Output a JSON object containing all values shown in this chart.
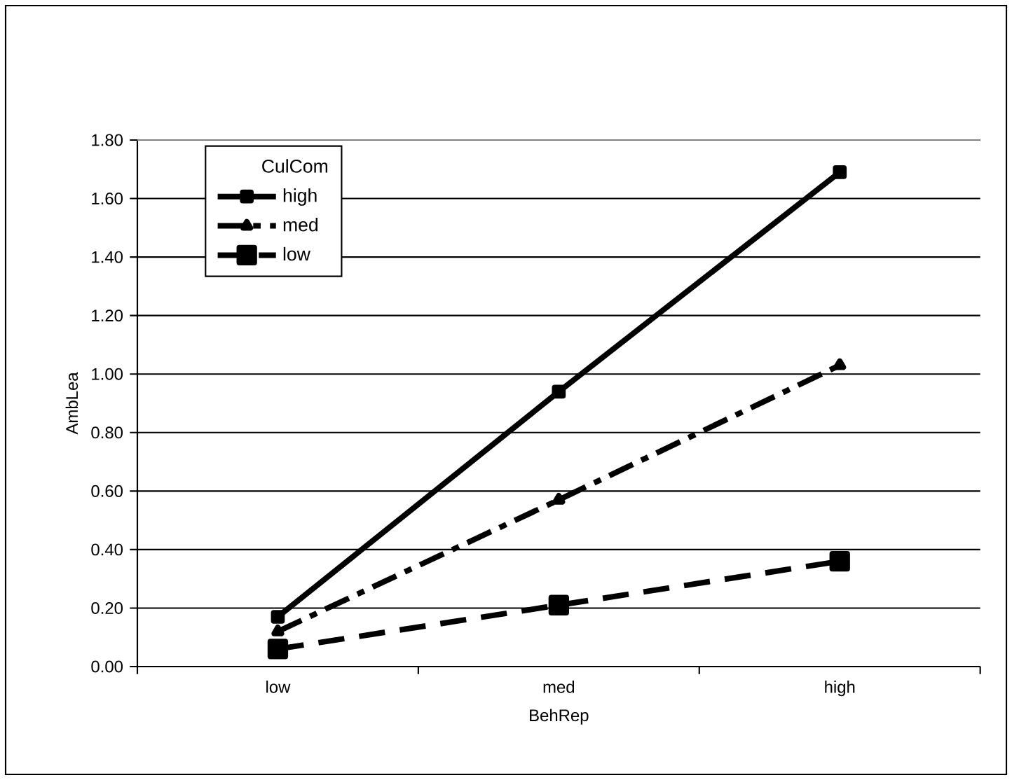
{
  "chart_data": {
    "type": "line",
    "xlabel": "BehRep",
    "ylabel": "AmbLea",
    "legend_title": "CulCom",
    "categories": [
      "low",
      "med",
      "high"
    ],
    "series": [
      {
        "name": "high",
        "color": "#000000",
        "values": [
          0.17,
          0.94,
          1.69
        ],
        "marker": "square",
        "line_style": "solid"
      },
      {
        "name": "med",
        "color": "#000000",
        "values": [
          0.12,
          0.57,
          1.03
        ],
        "marker": "triangle",
        "line_style": "dashed"
      },
      {
        "name": "low",
        "color": "#000000",
        "values": [
          0.06,
          0.21,
          0.36
        ],
        "marker": "square",
        "line_style": "dashed"
      }
    ],
    "ylim": [
      0,
      1.8
    ],
    "yticks": [
      {
        "value": 0,
        "label": "0.00"
      },
      {
        "value": 0.2,
        "label": "0.20"
      },
      {
        "value": 0.4,
        "label": "0.40"
      },
      {
        "value": 0.6,
        "label": "0.60"
      },
      {
        "value": 0.8,
        "label": "0.80"
      },
      {
        "value": 1.0,
        "label": "1.00"
      },
      {
        "value": 1.2,
        "label": "1.20"
      },
      {
        "value": 1.4,
        "label": "1.40"
      },
      {
        "value": 1.6,
        "label": "1.60"
      },
      {
        "value": 1.8,
        "label": "1.80"
      }
    ],
    "grid": "y",
    "legend": "top left"
  }
}
